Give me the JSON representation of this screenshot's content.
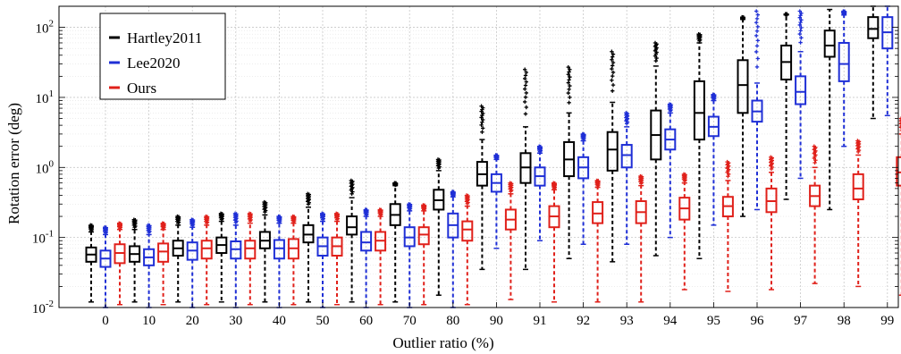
{
  "chart_data": {
    "type": "box",
    "xlabel": "Outlier ratio (%)",
    "ylabel": "Rotation error (deg)",
    "yscale": "log",
    "ylim": [
      0.01,
      200
    ],
    "yticks": [
      0.01,
      0.1,
      1,
      10,
      100
    ],
    "ytick_labels": [
      {
        "base": "10",
        "exp": "-2"
      },
      {
        "base": "10",
        "exp": "-1"
      },
      {
        "base": "10",
        "exp": "0"
      },
      {
        "base": "10",
        "exp": "1"
      },
      {
        "base": "10",
        "exp": "2"
      }
    ],
    "grid": true,
    "legend_position": "top-left",
    "categories": [
      "0",
      "10",
      "20",
      "30",
      "40",
      "50",
      "60",
      "70",
      "80",
      "90",
      "91",
      "92",
      "93",
      "94",
      "95",
      "96",
      "97",
      "98",
      "99"
    ],
    "series": [
      {
        "name": "Hartley2011",
        "color": "#000000",
        "boxes": [
          {
            "min": 0.012,
            "q1": 0.045,
            "median": 0.057,
            "q3": 0.072,
            "max": 0.12,
            "outlier_max": 0.15
          },
          {
            "min": 0.012,
            "q1": 0.045,
            "median": 0.058,
            "q3": 0.075,
            "max": 0.13,
            "outlier_max": 0.18
          },
          {
            "min": 0.012,
            "q1": 0.055,
            "median": 0.07,
            "q3": 0.09,
            "max": 0.15,
            "outlier_max": 0.2
          },
          {
            "min": 0.012,
            "q1": 0.06,
            "median": 0.078,
            "q3": 0.1,
            "max": 0.17,
            "outlier_max": 0.22
          },
          {
            "min": 0.012,
            "q1": 0.07,
            "median": 0.09,
            "q3": 0.12,
            "max": 0.21,
            "outlier_max": 0.32
          },
          {
            "min": 0.012,
            "q1": 0.085,
            "median": 0.11,
            "q3": 0.15,
            "max": 0.27,
            "outlier_max": 0.42
          },
          {
            "min": 0.012,
            "q1": 0.11,
            "median": 0.14,
            "q3": 0.2,
            "max": 0.37,
            "outlier_max": 0.65
          },
          {
            "min": 0.012,
            "q1": 0.15,
            "median": 0.21,
            "q3": 0.3,
            "max": 0.55,
            "outlier_max": 0.6
          },
          {
            "min": 0.015,
            "q1": 0.25,
            "median": 0.34,
            "q3": 0.48,
            "max": 0.9,
            "outlier_max": 1.3
          },
          {
            "min": 0.035,
            "q1": 0.55,
            "median": 0.8,
            "q3": 1.2,
            "max": 2.5,
            "outlier_max": 7.5
          },
          {
            "min": 0.035,
            "q1": 0.6,
            "median": 1.0,
            "q3": 1.6,
            "max": 3.8,
            "outlier_max": 25
          },
          {
            "min": 0.05,
            "q1": 0.75,
            "median": 1.3,
            "q3": 2.3,
            "max": 6.0,
            "outlier_max": 27
          },
          {
            "min": 0.045,
            "q1": 0.9,
            "median": 1.8,
            "q3": 3.2,
            "max": 8.5,
            "outlier_max": 45
          },
          {
            "min": 0.055,
            "q1": 1.3,
            "median": 2.9,
            "q3": 6.5,
            "max": 28,
            "outlier_max": 60
          },
          {
            "min": 0.05,
            "q1": 2.5,
            "median": 6.0,
            "q3": 17,
            "max": 60,
            "outlier_max": 80
          },
          {
            "min": 0.2,
            "q1": 6.0,
            "median": 15,
            "q3": 34,
            "max": 130,
            "outlier_max": 140
          },
          {
            "min": 0.35,
            "q1": 18,
            "median": 32,
            "q3": 55,
            "max": 150,
            "outlier_max": 155
          },
          {
            "min": 0.25,
            "q1": 38,
            "median": 55,
            "q3": 90,
            "max": 180,
            "outlier_max": 180
          },
          {
            "min": 5.0,
            "q1": 70,
            "median": 95,
            "q3": 140,
            "max": 200,
            "outlier_max": 200
          }
        ]
      },
      {
        "name": "Lee2020",
        "color": "#1f2fd6",
        "boxes": [
          {
            "min": 0.01,
            "q1": 0.038,
            "median": 0.05,
            "q3": 0.065,
            "max": 0.11,
            "outlier_max": 0.14
          },
          {
            "min": 0.01,
            "q1": 0.04,
            "median": 0.052,
            "q3": 0.068,
            "max": 0.11,
            "outlier_max": 0.15
          },
          {
            "min": 0.01,
            "q1": 0.048,
            "median": 0.065,
            "q3": 0.085,
            "max": 0.14,
            "outlier_max": 0.18
          },
          {
            "min": 0.01,
            "q1": 0.05,
            "median": 0.068,
            "q3": 0.088,
            "max": 0.15,
            "outlier_max": 0.22
          },
          {
            "min": 0.01,
            "q1": 0.05,
            "median": 0.07,
            "q3": 0.092,
            "max": 0.16,
            "outlier_max": 0.2
          },
          {
            "min": 0.01,
            "q1": 0.055,
            "median": 0.075,
            "q3": 0.1,
            "max": 0.17,
            "outlier_max": 0.22
          },
          {
            "min": 0.01,
            "q1": 0.065,
            "median": 0.085,
            "q3": 0.12,
            "max": 0.2,
            "outlier_max": 0.25
          },
          {
            "min": 0.01,
            "q1": 0.075,
            "median": 0.1,
            "q3": 0.14,
            "max": 0.24,
            "outlier_max": 0.3
          },
          {
            "min": 0.01,
            "q1": 0.1,
            "median": 0.15,
            "q3": 0.22,
            "max": 0.38,
            "outlier_max": 0.45
          },
          {
            "min": 0.07,
            "q1": 0.45,
            "median": 0.6,
            "q3": 0.8,
            "max": 1.3,
            "outlier_max": 1.5
          },
          {
            "min": 0.09,
            "q1": 0.55,
            "median": 0.75,
            "q3": 1.0,
            "max": 1.6,
            "outlier_max": 2.0
          },
          {
            "min": 0.08,
            "q1": 0.7,
            "median": 1.0,
            "q3": 1.4,
            "max": 2.4,
            "outlier_max": 3.0
          },
          {
            "min": 0.08,
            "q1": 1.0,
            "median": 1.5,
            "q3": 2.1,
            "max": 3.8,
            "outlier_max": 6.0
          },
          {
            "min": 0.1,
            "q1": 1.8,
            "median": 2.5,
            "q3": 3.5,
            "max": 6.0,
            "outlier_max": 8.0
          },
          {
            "min": 0.15,
            "q1": 2.8,
            "median": 3.8,
            "q3": 5.3,
            "max": 9.0,
            "outlier_max": 11
          },
          {
            "min": 0.25,
            "q1": 4.5,
            "median": 6.3,
            "q3": 9.0,
            "max": 16,
            "outlier_max": 170
          },
          {
            "min": 0.7,
            "q1": 8.0,
            "median": 12,
            "q3": 20,
            "max": 45,
            "outlier_max": 170
          },
          {
            "min": 2.0,
            "q1": 17,
            "median": 30,
            "q3": 60,
            "max": 150,
            "outlier_max": 170
          },
          {
            "min": 5.5,
            "q1": 50,
            "median": 85,
            "q3": 140,
            "max": 200,
            "outlier_max": 200
          }
        ]
      },
      {
        "name": "Ours",
        "color": "#e0201a",
        "boxes": [
          {
            "min": 0.011,
            "q1": 0.043,
            "median": 0.06,
            "q3": 0.08,
            "max": 0.13,
            "outlier_max": 0.16
          },
          {
            "min": 0.011,
            "q1": 0.045,
            "median": 0.063,
            "q3": 0.082,
            "max": 0.13,
            "outlier_max": 0.16
          },
          {
            "min": 0.011,
            "q1": 0.05,
            "median": 0.07,
            "q3": 0.09,
            "max": 0.15,
            "outlier_max": 0.2
          },
          {
            "min": 0.011,
            "q1": 0.05,
            "median": 0.07,
            "q3": 0.09,
            "max": 0.16,
            "outlier_max": 0.22
          },
          {
            "min": 0.011,
            "q1": 0.05,
            "median": 0.07,
            "q3": 0.095,
            "max": 0.16,
            "outlier_max": 0.2
          },
          {
            "min": 0.011,
            "q1": 0.055,
            "median": 0.075,
            "q3": 0.1,
            "max": 0.17,
            "outlier_max": 0.22
          },
          {
            "min": 0.011,
            "q1": 0.065,
            "median": 0.09,
            "q3": 0.12,
            "max": 0.2,
            "outlier_max": 0.25
          },
          {
            "min": 0.011,
            "q1": 0.08,
            "median": 0.11,
            "q3": 0.14,
            "max": 0.24,
            "outlier_max": 0.29
          },
          {
            "min": 0.011,
            "q1": 0.09,
            "median": 0.13,
            "q3": 0.17,
            "max": 0.28,
            "outlier_max": 0.4
          },
          {
            "min": 0.013,
            "q1": 0.13,
            "median": 0.18,
            "q3": 0.25,
            "max": 0.42,
            "outlier_max": 0.6
          },
          {
            "min": 0.012,
            "q1": 0.14,
            "median": 0.2,
            "q3": 0.28,
            "max": 0.48,
            "outlier_max": 0.6
          },
          {
            "min": 0.012,
            "q1": 0.16,
            "median": 0.22,
            "q3": 0.32,
            "max": 0.52,
            "outlier_max": 0.65
          },
          {
            "min": 0.012,
            "q1": 0.16,
            "median": 0.23,
            "q3": 0.33,
            "max": 0.55,
            "outlier_max": 0.75
          },
          {
            "min": 0.018,
            "q1": 0.18,
            "median": 0.26,
            "q3": 0.37,
            "max": 0.6,
            "outlier_max": 0.8
          },
          {
            "min": 0.017,
            "q1": 0.2,
            "median": 0.28,
            "q3": 0.38,
            "max": 0.65,
            "outlier_max": 1.2
          },
          {
            "min": 0.018,
            "q1": 0.23,
            "median": 0.33,
            "q3": 0.5,
            "max": 0.85,
            "outlier_max": 1.4
          },
          {
            "min": 0.022,
            "q1": 0.28,
            "median": 0.39,
            "q3": 0.55,
            "max": 1.0,
            "outlier_max": 2.0
          },
          {
            "min": 0.02,
            "q1": 0.35,
            "median": 0.5,
            "q3": 0.8,
            "max": 1.5,
            "outlier_max": 2.4
          },
          {
            "min": 0.015,
            "q1": 0.55,
            "median": 0.85,
            "q3": 1.4,
            "max": 3.0,
            "outlier_max": 5.0
          }
        ]
      }
    ]
  }
}
